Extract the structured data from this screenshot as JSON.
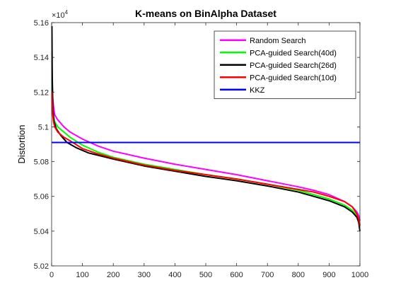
{
  "chart_data": {
    "type": "line",
    "title": "K-means on BinAlpha Dataset",
    "xlabel": "",
    "ylabel": "Distortion",
    "y_multiplier_label": "×10",
    "y_multiplier_exp": "4",
    "xlim": [
      0,
      1000
    ],
    "ylim": [
      5.02,
      5.16
    ],
    "x_ticks": [
      0,
      100,
      200,
      300,
      400,
      500,
      600,
      700,
      800,
      900,
      1000
    ],
    "x_tick_labels": [
      "0",
      "100",
      "200",
      "300",
      "400",
      "500",
      "600",
      "700",
      "800",
      "900",
      "1000"
    ],
    "y_ticks": [
      5.02,
      5.04,
      5.06,
      5.08,
      5.1,
      5.12,
      5.14,
      5.16
    ],
    "y_tick_labels": [
      "5.02",
      "5.04",
      "5.06",
      "5.08",
      "5.1",
      "5.12",
      "5.14",
      "5.16"
    ],
    "grid": false,
    "legend_position": "top-right",
    "series": [
      {
        "name": "Random Search",
        "color": "#ff00ff",
        "x": [
          1,
          3,
          6,
          10,
          20,
          40,
          60,
          100,
          150,
          200,
          300,
          400,
          500,
          600,
          700,
          800,
          850,
          900,
          950,
          975,
          990,
          996,
          1000
        ],
        "y": [
          5.138,
          5.118,
          5.112,
          5.107,
          5.104,
          5.1,
          5.097,
          5.093,
          5.089,
          5.086,
          5.082,
          5.0785,
          5.0755,
          5.0725,
          5.069,
          5.0655,
          5.0635,
          5.061,
          5.057,
          5.054,
          5.051,
          5.049,
          5.046
        ]
      },
      {
        "name": "PCA-guided Search(40d)",
        "color": "#00ff00",
        "x": [
          1,
          3,
          6,
          10,
          20,
          40,
          60,
          100,
          150,
          200,
          300,
          400,
          500,
          600,
          700,
          800,
          850,
          900,
          950,
          975,
          990,
          996,
          1000
        ],
        "y": [
          5.128,
          5.112,
          5.106,
          5.103,
          5.1,
          5.097,
          5.094,
          5.0895,
          5.0855,
          5.0825,
          5.0785,
          5.0755,
          5.0725,
          5.07,
          5.067,
          5.0635,
          5.061,
          5.0585,
          5.055,
          5.052,
          5.049,
          5.047,
          5.044
        ]
      },
      {
        "name": "PCA-guided Search(26d)",
        "color": "#000000",
        "x": [
          1,
          2,
          4,
          8,
          15,
          30,
          50,
          80,
          120,
          200,
          300,
          400,
          500,
          600,
          700,
          800,
          850,
          900,
          950,
          975,
          990,
          996,
          1000
        ],
        "y": [
          5.158,
          5.13,
          5.11,
          5.103,
          5.099,
          5.095,
          5.091,
          5.088,
          5.085,
          5.0815,
          5.0775,
          5.0745,
          5.0715,
          5.069,
          5.066,
          5.0625,
          5.06,
          5.0575,
          5.054,
          5.051,
          5.048,
          5.045,
          5.04
        ]
      },
      {
        "name": "PCA-guided Search(10d)",
        "color": "#ff0000",
        "x": [
          1,
          3,
          6,
          10,
          20,
          40,
          60,
          100,
          150,
          200,
          300,
          400,
          500,
          600,
          700,
          800,
          850,
          900,
          950,
          975,
          990,
          996,
          1000
        ],
        "y": [
          5.12,
          5.108,
          5.103,
          5.1,
          5.097,
          5.094,
          5.092,
          5.0875,
          5.0845,
          5.082,
          5.078,
          5.075,
          5.0725,
          5.07,
          5.067,
          5.064,
          5.0625,
          5.06,
          5.057,
          5.054,
          5.05,
          5.047,
          5.043
        ]
      },
      {
        "name": "KKZ",
        "color": "#0000ff",
        "x": [
          0,
          1000
        ],
        "y": [
          5.091,
          5.091
        ]
      }
    ]
  }
}
